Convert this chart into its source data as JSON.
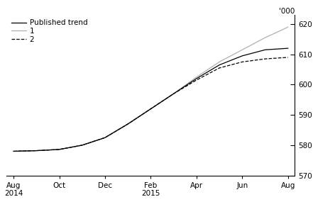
{
  "ylabel": "'000",
  "ylim": [
    570,
    623
  ],
  "yticks": [
    570,
    580,
    590,
    600,
    610,
    620
  ],
  "xtick_labels": [
    "Aug\n2014",
    "Oct",
    "Dec",
    "Feb\n2015",
    "Apr",
    "Jun",
    "Aug"
  ],
  "legend_labels": [
    "Published trend",
    "1",
    "2"
  ],
  "background_color": "#ffffff",
  "published_trend": {
    "x": [
      0,
      1,
      2,
      3,
      4,
      5,
      6,
      7,
      8,
      9,
      10,
      11,
      12
    ],
    "y": [
      578.0,
      578.2,
      578.6,
      580.0,
      582.5,
      587.0,
      592.0,
      597.0,
      602.0,
      606.5,
      609.5,
      611.5,
      612.0
    ],
    "color": "#000000",
    "linestyle": "-",
    "linewidth": 0.9
  },
  "revision1": {
    "x": [
      0,
      1,
      2,
      3,
      4,
      5,
      6,
      7,
      8,
      9,
      10,
      11,
      12
    ],
    "y": [
      578.0,
      578.2,
      578.6,
      580.0,
      582.5,
      587.0,
      592.0,
      597.0,
      602.5,
      607.5,
      611.5,
      615.5,
      619.0
    ],
    "color": "#b0b0b0",
    "linestyle": "-",
    "linewidth": 0.9
  },
  "revision2": {
    "x": [
      0,
      1,
      2,
      3,
      4,
      5,
      6,
      7,
      8,
      9,
      10,
      11,
      12
    ],
    "y": [
      578.0,
      578.2,
      578.6,
      580.0,
      582.5,
      587.0,
      592.0,
      597.0,
      601.5,
      605.5,
      607.5,
      608.5,
      609.0
    ],
    "color": "#000000",
    "linestyle": "--",
    "linewidth": 0.9
  },
  "figsize": [
    4.72,
    3.02
  ],
  "dpi": 100
}
